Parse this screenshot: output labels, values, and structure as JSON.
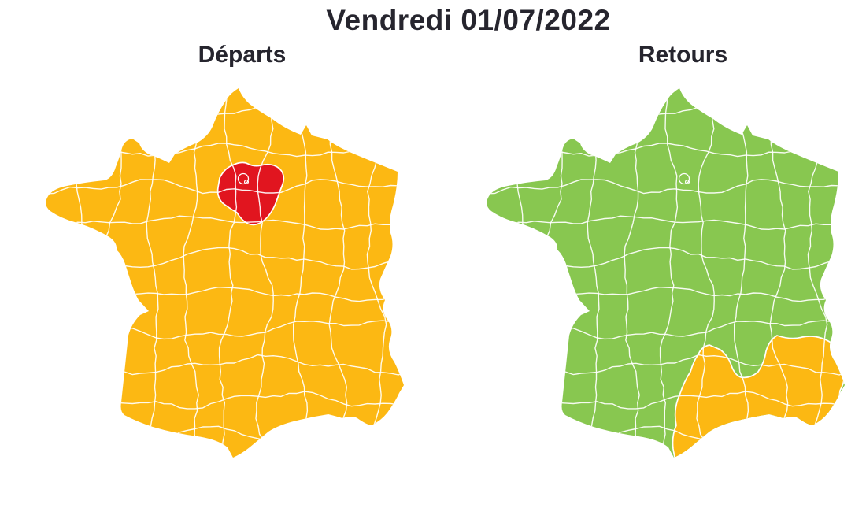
{
  "title": "Vendredi 01/07/2022",
  "maps": {
    "departs": {
      "label": "Départs",
      "base_level": "orange",
      "regions": [
        {
          "name": "Île-de-France",
          "level": "rouge"
        }
      ]
    },
    "retours": {
      "label": "Retours",
      "base_level": "vert",
      "regions": [
        {
          "name": "Sud-Est — Ardèche, Gard, Hérault, Vaucluse, Bouches-du-Rhône, Var, Hautes-Alpes, Alpes-de-Haute-Provence, Alpes-Maritimes",
          "level": "orange"
        }
      ]
    }
  },
  "colors": {
    "orange": "#FCB813",
    "vert": "#88C750",
    "rouge": "#E1151F",
    "borders": "#FFFFFF",
    "text": "#26252E"
  }
}
